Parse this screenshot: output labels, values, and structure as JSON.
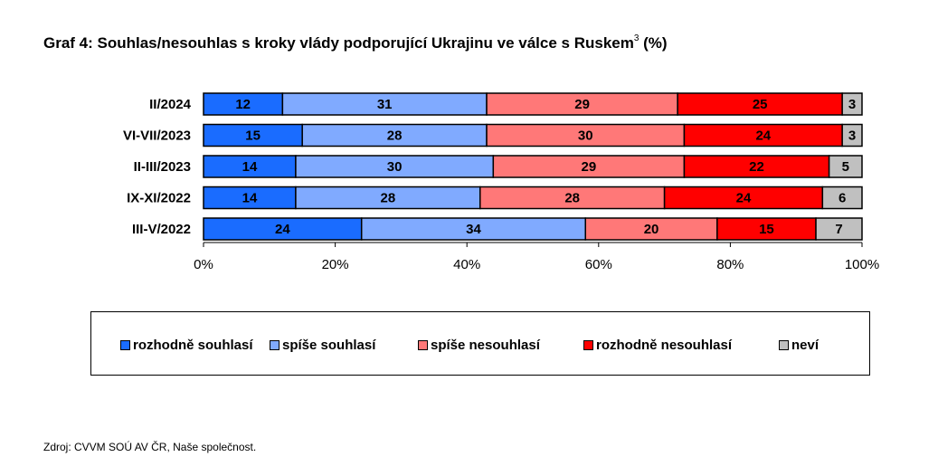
{
  "title_main": "Graf 4: Souhlas/nesouhlas s kroky vlády podporující Ukrajinu ve válce s Ruskem",
  "title_sup": "3",
  "title_suffix": " (%)",
  "source": "Zdroj: CVVM SOÚ AV ČR, Naše společnost.",
  "colors": {
    "rozhodne_souhlasi": "#1a6cff",
    "spise_souhlasi": "#80aaff",
    "spise_nesouhlasi": "#ff7878",
    "rozhodne_nesouhlasi": "#ff0000",
    "nevi": "#c0c0c0"
  },
  "chart_data": {
    "type": "bar",
    "orientation": "horizontal",
    "stacked": "percent",
    "categories": [
      "II/2024",
      "VI-VII/2023",
      "II-III/2023",
      "IX-XI/2022",
      "III-V/2022"
    ],
    "series": [
      {
        "name": "rozhodně souhlasí",
        "color": "#1a6cff",
        "values": [
          12,
          15,
          14,
          14,
          24
        ]
      },
      {
        "name": "spíše souhlasí",
        "color": "#80aaff",
        "values": [
          31,
          28,
          30,
          28,
          34
        ]
      },
      {
        "name": "spíše nesouhlasí",
        "color": "#ff7878",
        "values": [
          29,
          30,
          29,
          28,
          20
        ]
      },
      {
        "name": "rozhodně nesouhlasí",
        "color": "#ff0000",
        "values": [
          25,
          24,
          22,
          24,
          15
        ]
      },
      {
        "name": "neví",
        "color": "#c0c0c0",
        "values": [
          3,
          3,
          5,
          6,
          7
        ]
      }
    ],
    "x_ticks": [
      "0%",
      "20%",
      "40%",
      "60%",
      "80%",
      "100%"
    ],
    "xlim": [
      0,
      100
    ],
    "grid": false,
    "legend_position": "bottom"
  }
}
